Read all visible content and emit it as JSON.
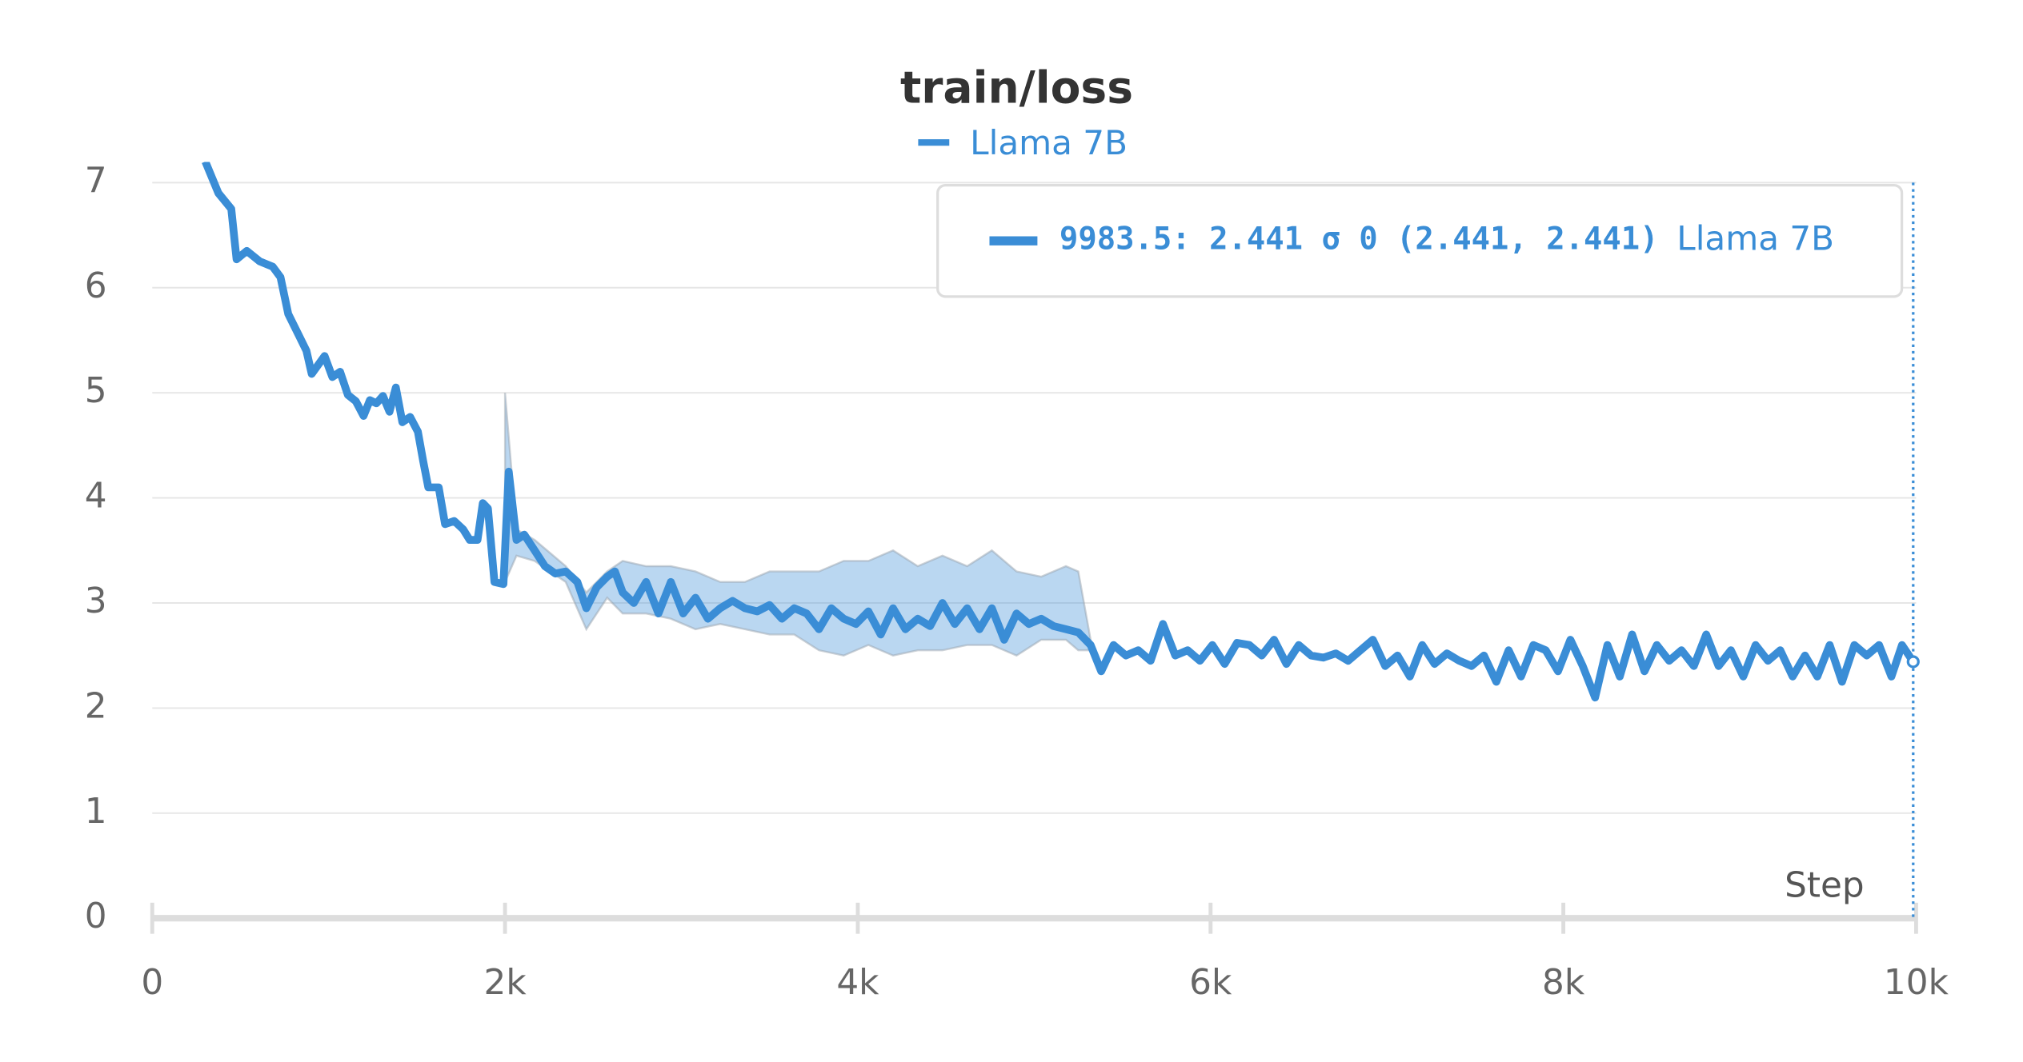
{
  "chart_data": {
    "type": "line",
    "title": "train/loss",
    "xlabel": "Step",
    "xlim": [
      0,
      10000
    ],
    "ylim": [
      0,
      7
    ],
    "xticks": [
      0,
      {
        "value": 2000,
        "label": "2k"
      },
      {
        "value": 4000,
        "label": "4k"
      },
      {
        "value": 6000,
        "label": "6k"
      },
      {
        "value": 8000,
        "label": "8k"
      },
      {
        "value": 10000,
        "label": "10k"
      }
    ],
    "yticks": [
      0,
      1,
      2,
      3,
      4,
      5,
      6,
      7
    ],
    "grid": true,
    "series": [
      {
        "name": "Llama 7B",
        "color": "#3a8dd6",
        "x": [
          301,
          375,
          448,
          478,
          536,
          610,
          683,
          727,
          771,
          830,
          874,
          904,
          977,
          1021,
          1065,
          1109,
          1154,
          1198,
          1234,
          1271,
          1308,
          1345,
          1381,
          1418,
          1462,
          1506,
          1536,
          1565,
          1624,
          1660,
          1712,
          1763,
          1800,
          1844,
          1874,
          1903,
          1940,
          1991,
          2021,
          2065,
          2109,
          2168,
          2226,
          2285,
          2344,
          2410,
          2461,
          2520,
          2579,
          2623,
          2667,
          2730,
          2800,
          2870,
          2940,
          3010,
          3080,
          3150,
          3220,
          3290,
          3360,
          3430,
          3500,
          3570,
          3640,
          3710,
          3780,
          3850,
          3920,
          3990,
          4060,
          4130,
          4200,
          4270,
          4340,
          4410,
          4480,
          4550,
          4620,
          4690,
          4760,
          4830,
          4900,
          4970,
          5040,
          5110,
          5180,
          5250,
          5320,
          5380,
          5450,
          5520,
          5590,
          5660,
          5730,
          5800,
          5870,
          5940,
          6010,
          6080,
          6150,
          6220,
          6290,
          6360,
          6430,
          6500,
          6570,
          6640,
          6710,
          6780,
          6850,
          6920,
          6990,
          7060,
          7130,
          7200,
          7270,
          7340,
          7410,
          7480,
          7550,
          7620,
          7690,
          7760,
          7830,
          7900,
          7970,
          8040,
          8110,
          8180,
          8250,
          8320,
          8390,
          8460,
          8530,
          8600,
          8670,
          8740,
          8810,
          8880,
          8950,
          9020,
          9090,
          9160,
          9230,
          9300,
          9370,
          9440,
          9510,
          9580,
          9650,
          9720,
          9790,
          9860,
          9920,
          9983.5
        ],
        "values": [
          7.2,
          6.9,
          6.75,
          6.27,
          6.35,
          6.25,
          6.2,
          6.1,
          5.75,
          5.55,
          5.4,
          5.18,
          5.35,
          5.15,
          5.2,
          4.98,
          4.92,
          4.78,
          4.93,
          4.9,
          4.97,
          4.82,
          5.05,
          4.72,
          4.77,
          4.63,
          4.35,
          4.1,
          4.1,
          3.75,
          3.78,
          3.7,
          3.6,
          3.6,
          3.95,
          3.9,
          3.2,
          3.18,
          4.25,
          3.6,
          3.65,
          3.5,
          3.35,
          3.28,
          3.3,
          3.2,
          2.95,
          3.15,
          3.25,
          3.3,
          3.1,
          3.0,
          3.2,
          2.9,
          3.2,
          2.9,
          3.05,
          2.85,
          2.95,
          3.02,
          2.95,
          2.92,
          2.98,
          2.85,
          2.95,
          2.9,
          2.75,
          2.95,
          2.85,
          2.8,
          2.92,
          2.7,
          2.95,
          2.75,
          2.85,
          2.78,
          3.0,
          2.8,
          2.95,
          2.75,
          2.95,
          2.65,
          2.9,
          2.8,
          2.85,
          2.78,
          2.75,
          2.72,
          2.6,
          2.35,
          2.6,
          2.5,
          2.55,
          2.45,
          2.8,
          2.5,
          2.55,
          2.45,
          2.6,
          2.42,
          2.62,
          2.6,
          2.5,
          2.65,
          2.42,
          2.6,
          2.5,
          2.48,
          2.52,
          2.45,
          2.55,
          2.65,
          2.4,
          2.5,
          2.3,
          2.6,
          2.42,
          2.52,
          2.45,
          2.4,
          2.5,
          2.25,
          2.55,
          2.3,
          2.6,
          2.55,
          2.35,
          2.65,
          2.4,
          2.1,
          2.6,
          2.3,
          2.7,
          2.35,
          2.6,
          2.45,
          2.55,
          2.4,
          2.7,
          2.4,
          2.55,
          2.3,
          2.6,
          2.45,
          2.55,
          2.3,
          2.5,
          2.3,
          2.6,
          2.25,
          2.6,
          2.5,
          2.6,
          2.3,
          2.6,
          2.441
        ]
      }
    ],
    "band": {
      "color": "#3a8dd6",
      "x": [
        2000,
        2065,
        2168,
        2344,
        2461,
        2579,
        2667,
        2800,
        2940,
        3080,
        3220,
        3360,
        3500,
        3640,
        3780,
        3920,
        4060,
        4200,
        4340,
        4480,
        4620,
        4760,
        4900,
        5040,
        5180,
        5250,
        5320
      ],
      "lower": [
        3.2,
        3.45,
        3.4,
        3.2,
        2.75,
        3.05,
        2.9,
        2.9,
        2.85,
        2.75,
        2.8,
        2.75,
        2.7,
        2.7,
        2.55,
        2.5,
        2.6,
        2.5,
        2.55,
        2.55,
        2.6,
        2.6,
        2.5,
        2.65,
        2.65,
        2.55,
        2.55
      ],
      "upper": [
        5.0,
        3.7,
        3.6,
        3.35,
        3.1,
        3.3,
        3.4,
        3.35,
        3.35,
        3.3,
        3.2,
        3.2,
        3.3,
        3.3,
        3.3,
        3.4,
        3.4,
        3.5,
        3.35,
        3.45,
        3.35,
        3.5,
        3.3,
        3.25,
        3.35,
        3.3,
        2.65
      ]
    },
    "hover": {
      "x": 9983.5,
      "y": 2.441,
      "label": "9983.5: 2.441 σ 0 (2.441, 2.441)"
    }
  }
}
